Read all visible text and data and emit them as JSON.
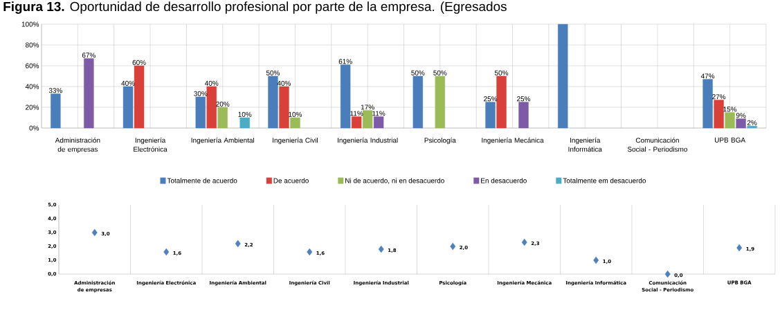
{
  "chart_data": [
    {
      "type": "bar",
      "title": "**Figura 13.** Oportunidad de desarrollo profesional por parte de la empresa. (Egresados",
      "categories": [
        "Administración de empresas",
        "Ingeniería Electrónica",
        "Ingeniería Ambiental",
        "Ingeniería Civil",
        "Ingeniería Industrial",
        "Psicología",
        "Ingeniería Mecánica",
        "Ingeniería Informática",
        "Comunicación Social - Periodismo",
        "UPB BGA"
      ],
      "series": [
        {
          "name": "Totalmente de acuerdo",
          "color": "#4a7ebb",
          "values": [
            33,
            40,
            30,
            50,
            61,
            50,
            25,
            100,
            null,
            47
          ],
          "value_labels": [
            "33%",
            "40%",
            "30%",
            "50%",
            "61%",
            "50%",
            "25%",
            null,
            null,
            "47%"
          ]
        },
        {
          "name": "De acuerdo",
          "color": "#d9403a",
          "values": [
            null,
            60,
            40,
            40,
            11,
            null,
            50,
            null,
            null,
            27
          ],
          "value_labels": [
            null,
            "60%",
            "40%",
            "40%",
            "11%",
            null,
            "50%",
            null,
            null,
            "27%"
          ]
        },
        {
          "name": "Ni de acuerdo, ni en desacuerdo",
          "color": "#9bbb59",
          "values": [
            null,
            null,
            20,
            10,
            17,
            50,
            null,
            null,
            null,
            15
          ],
          "value_labels": [
            null,
            null,
            "20%",
            "10%",
            "17%",
            "50%",
            null,
            null,
            null,
            "15%"
          ]
        },
        {
          "name": "En desacuerdo",
          "color": "#7d5ba6",
          "values": [
            67,
            null,
            null,
            null,
            11,
            null,
            25,
            null,
            null,
            9
          ],
          "value_labels": [
            "67%",
            null,
            null,
            null,
            "11%",
            null,
            "25%",
            null,
            null,
            "9%"
          ]
        },
        {
          "name": "Totalmente em desacuerdo",
          "color": "#4bacc6",
          "values": [
            null,
            null,
            10,
            null,
            null,
            null,
            null,
            null,
            null,
            2
          ],
          "value_labels": [
            null,
            null,
            "10%",
            null,
            null,
            null,
            null,
            null,
            null,
            "2%"
          ]
        }
      ],
      "ylim": [
        0,
        100
      ],
      "yticks": [
        {
          "value": 0,
          "label": "0%"
        },
        {
          "value": 20,
          "label": "20%"
        },
        {
          "value": 40,
          "label": "40%"
        },
        {
          "value": 60,
          "label": "60%"
        },
        {
          "value": 80,
          "label": "80%"
        },
        {
          "value": 100,
          "label": "100%"
        }
      ],
      "grid": true,
      "legend": "bottom"
    },
    {
      "type": "scatter",
      "categories": [
        "Administración de empresas",
        "Ingeniería Electrónica",
        "Ingeniería Ambiental",
        "Ingeniería  Civil",
        "Ingeniería Industrial",
        "Psicología",
        "Ingeniería Mecánica",
        "Ingeniería Informática",
        "Comunicación Social - Periodismo",
        "UPB BGA"
      ],
      "series": [
        {
          "color": "#4f81bd",
          "values": [
            3.0,
            1.6,
            2.2,
            1.6,
            1.8,
            2.0,
            2.3,
            1.0,
            0.0,
            1.9
          ],
          "value_labels": [
            "3,0",
            "1,6",
            "2,2",
            "1,6",
            "1,8",
            "2,0",
            "2,3",
            "1,0",
            "0,0",
            "1,9"
          ]
        }
      ],
      "ylim": [
        0,
        5
      ],
      "yticks": [
        {
          "value": 0,
          "label": "0,0"
        },
        {
          "value": 1,
          "label": "1,0"
        },
        {
          "value": 2,
          "label": "2,0"
        },
        {
          "value": 3,
          "label": "3,0"
        },
        {
          "value": 4,
          "label": "4,0"
        },
        {
          "value": 5,
          "label": "5,0"
        }
      ],
      "grid": "x",
      "marker": "diamond"
    }
  ]
}
